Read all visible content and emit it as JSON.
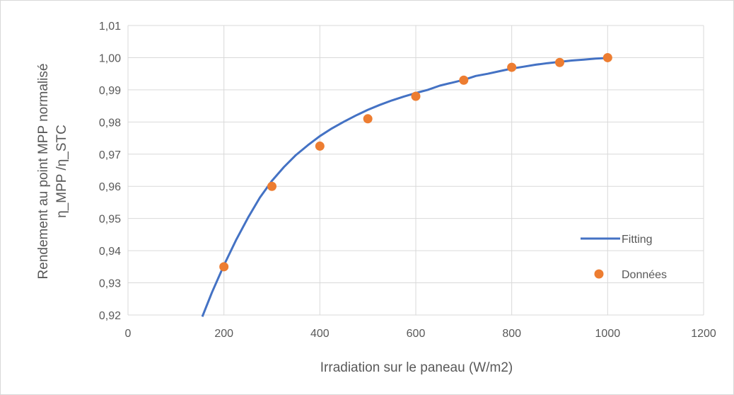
{
  "chart_data": {
    "type": "scatter",
    "title": "",
    "xlabel": "Irradiation sur le paneau (W/m2)",
    "ylabel_lines": [
      "Rendement au point MPP normalisé",
      "η_MPP /η_STC"
    ],
    "xlim": [
      0,
      1200
    ],
    "ylim": [
      0.92,
      1.01
    ],
    "x_ticks": [
      "0",
      "200",
      "400",
      "600",
      "800",
      "1000",
      "1200"
    ],
    "y_ticks": [
      "0,92",
      "0,93",
      "0,94",
      "0,95",
      "0,96",
      "0,97",
      "0,98",
      "0,99",
      "1,00",
      "1,01"
    ],
    "grid": "vertical and horizontal major gridlines",
    "legend_position": "lower-right",
    "series": [
      {
        "name": "Fitting",
        "kind": "line",
        "color": "#4472c4",
        "x": [
          155,
          175,
          200,
          225,
          250,
          275,
          300,
          325,
          350,
          375,
          400,
          425,
          450,
          475,
          500,
          525,
          550,
          575,
          600,
          625,
          650,
          675,
          700,
          725,
          750,
          775,
          800,
          825,
          850,
          875,
          900,
          925,
          950,
          975,
          1000
        ],
        "y": [
          0.9195,
          0.927,
          0.9355,
          0.9432,
          0.9502,
          0.9565,
          0.9617,
          0.966,
          0.9697,
          0.9728,
          0.9756,
          0.978,
          0.9801,
          0.982,
          0.9838,
          0.9853,
          0.9867,
          0.9879,
          0.989,
          0.99,
          0.9913,
          0.9922,
          0.9931,
          0.9943,
          0.995,
          0.9958,
          0.9966,
          0.9972,
          0.9978,
          0.9983,
          0.9987,
          0.9991,
          0.9994,
          0.9997,
          0.9999
        ]
      },
      {
        "name": "Données",
        "kind": "markers",
        "color": "#ed7d31",
        "x": [
          200,
          300,
          400,
          500,
          600,
          700,
          800,
          900,
          1000
        ],
        "y": [
          0.935,
          0.96,
          0.9725,
          0.981,
          0.988,
          0.993,
          0.997,
          0.9985,
          1.0
        ]
      }
    ]
  }
}
